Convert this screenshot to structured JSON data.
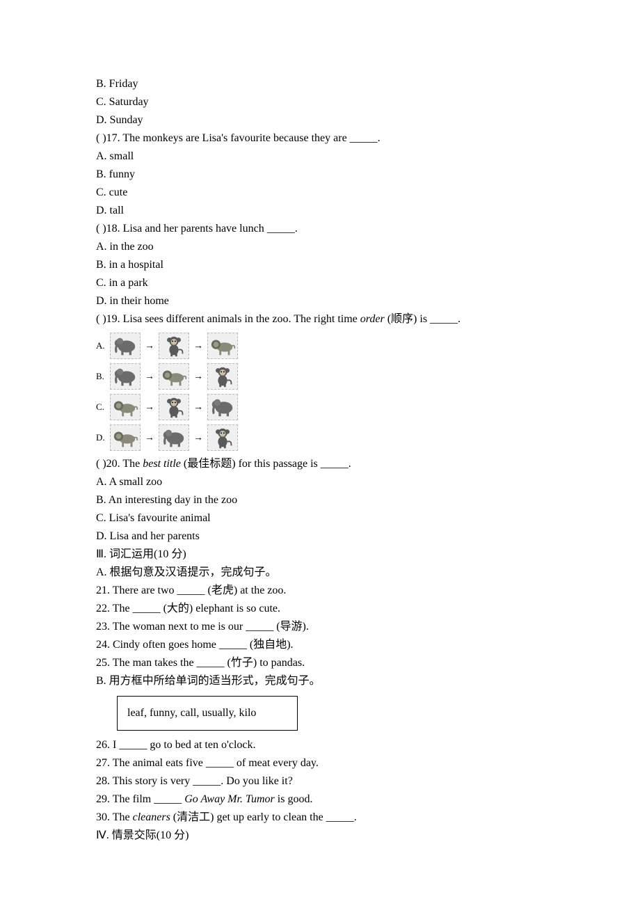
{
  "q16_options": {
    "b": "B. Friday",
    "c": "C. Saturday",
    "d": "D. Sunday"
  },
  "q17": {
    "stem": "(   )17. The monkeys are Lisa's favourite because they are _____.",
    "a": "A. small",
    "b": "B. funny",
    "c": "C. cute",
    "d": "D. tall"
  },
  "q18": {
    "stem": "(   )18. Lisa and her parents have lunch _____.",
    "a": "A. in the zoo",
    "b": "B. in a hospital",
    "c": "C. in a park",
    "d": "D. in their home"
  },
  "q19": {
    "stem_pre": "(   )19. Lisa sees different animals in the zoo. The right time ",
    "stem_italic": "order",
    "stem_post": " (顺序) is _____.",
    "options": [
      {
        "letter": "A.",
        "sequence": [
          "elephant",
          "monkey",
          "lion"
        ]
      },
      {
        "letter": "B.",
        "sequence": [
          "elephant",
          "lion",
          "monkey"
        ]
      },
      {
        "letter": "C.",
        "sequence": [
          "lion",
          "monkey",
          "elephant"
        ]
      },
      {
        "letter": "D.",
        "sequence": [
          "lion",
          "elephant",
          "monkey"
        ]
      }
    ],
    "arrow": "→"
  },
  "q20": {
    "stem_pre": "(   )20. The ",
    "stem_italic": "best title",
    "stem_post": " (最佳标题) for this passage is _____.",
    "a": "A. A small zoo",
    "b": "B. An interesting day in the zoo",
    "c": "C. Lisa's favourite animal",
    "d": "D. Lisa and her parents"
  },
  "sec3": {
    "header": "Ⅲ. 词汇运用(10 分)",
    "partA": "A. 根据句意及汉语提示，完成句子。",
    "i21": "21. There are two _____ (老虎) at the zoo.",
    "i22": "22. The _____ (大的) elephant is so cute.",
    "i23": "23. The woman next to me is our _____ (导游).",
    "i24": "24. Cindy often goes home _____ (独自地).",
    "i25": "25. The man takes the _____ (竹子) to pandas.",
    "partB": "B. 用方框中所给单词的适当形式，完成句子。",
    "box": "leaf, funny, call, usually, kilo",
    "i26": "26. I _____ go to bed at ten o'clock.",
    "i27": "27. The animal eats five _____ of meat every day.",
    "i28": "28. This story is very _____. Do you like it?",
    "i29_pre": "29. The film _____ ",
    "i29_italic": "Go Away Mr. Tumor",
    "i29_post": " is good.",
    "i30_pre": "30. The ",
    "i30_italic": "cleaners",
    "i30_post": " (清洁工) get up early to clean the _____."
  },
  "sec4": {
    "header": "Ⅳ. 情景交际(10 分)"
  },
  "animals": {
    "elephant": "elephant",
    "monkey": "monkey",
    "lion": "lion"
  }
}
